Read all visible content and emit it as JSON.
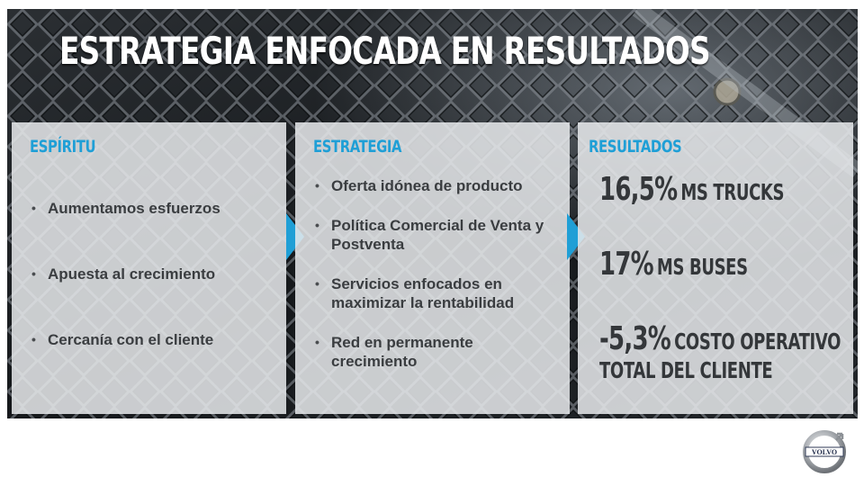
{
  "slide": {
    "title": "ESTRATEGIA ENFOCADA EN RESULTADOS",
    "logo_icon": "volvo-logo-icon",
    "logo_text": "VOLVO"
  },
  "columns": [
    {
      "heading": "ESPÍRITU",
      "items": [
        "Aumentamos esfuerzos",
        "Apuesta al crecimiento",
        "Cercanía con el cliente"
      ]
    },
    {
      "heading": "ESTRATEGIA",
      "items": [
        "Oferta idónea de producto",
        "Política Comercial de Venta y Postventa",
        "Servicios enfocados en maximizar la rentabilidad",
        "Red en permanente crecimiento"
      ]
    },
    {
      "heading": "RESULTADOS",
      "results": [
        {
          "value": "16,5%",
          "label": "MS TRUCKS"
        },
        {
          "value": "17%",
          "label": "MS BUSES"
        },
        {
          "value": "-5,3%",
          "label": "COSTO OPERATIVO",
          "label2": "TOTAL DEL CLIENTE"
        }
      ]
    }
  ],
  "bullet": "•",
  "colors": {
    "accent": "#1f9fd6",
    "text": "#3a3d40",
    "background": "#1c1f22"
  }
}
